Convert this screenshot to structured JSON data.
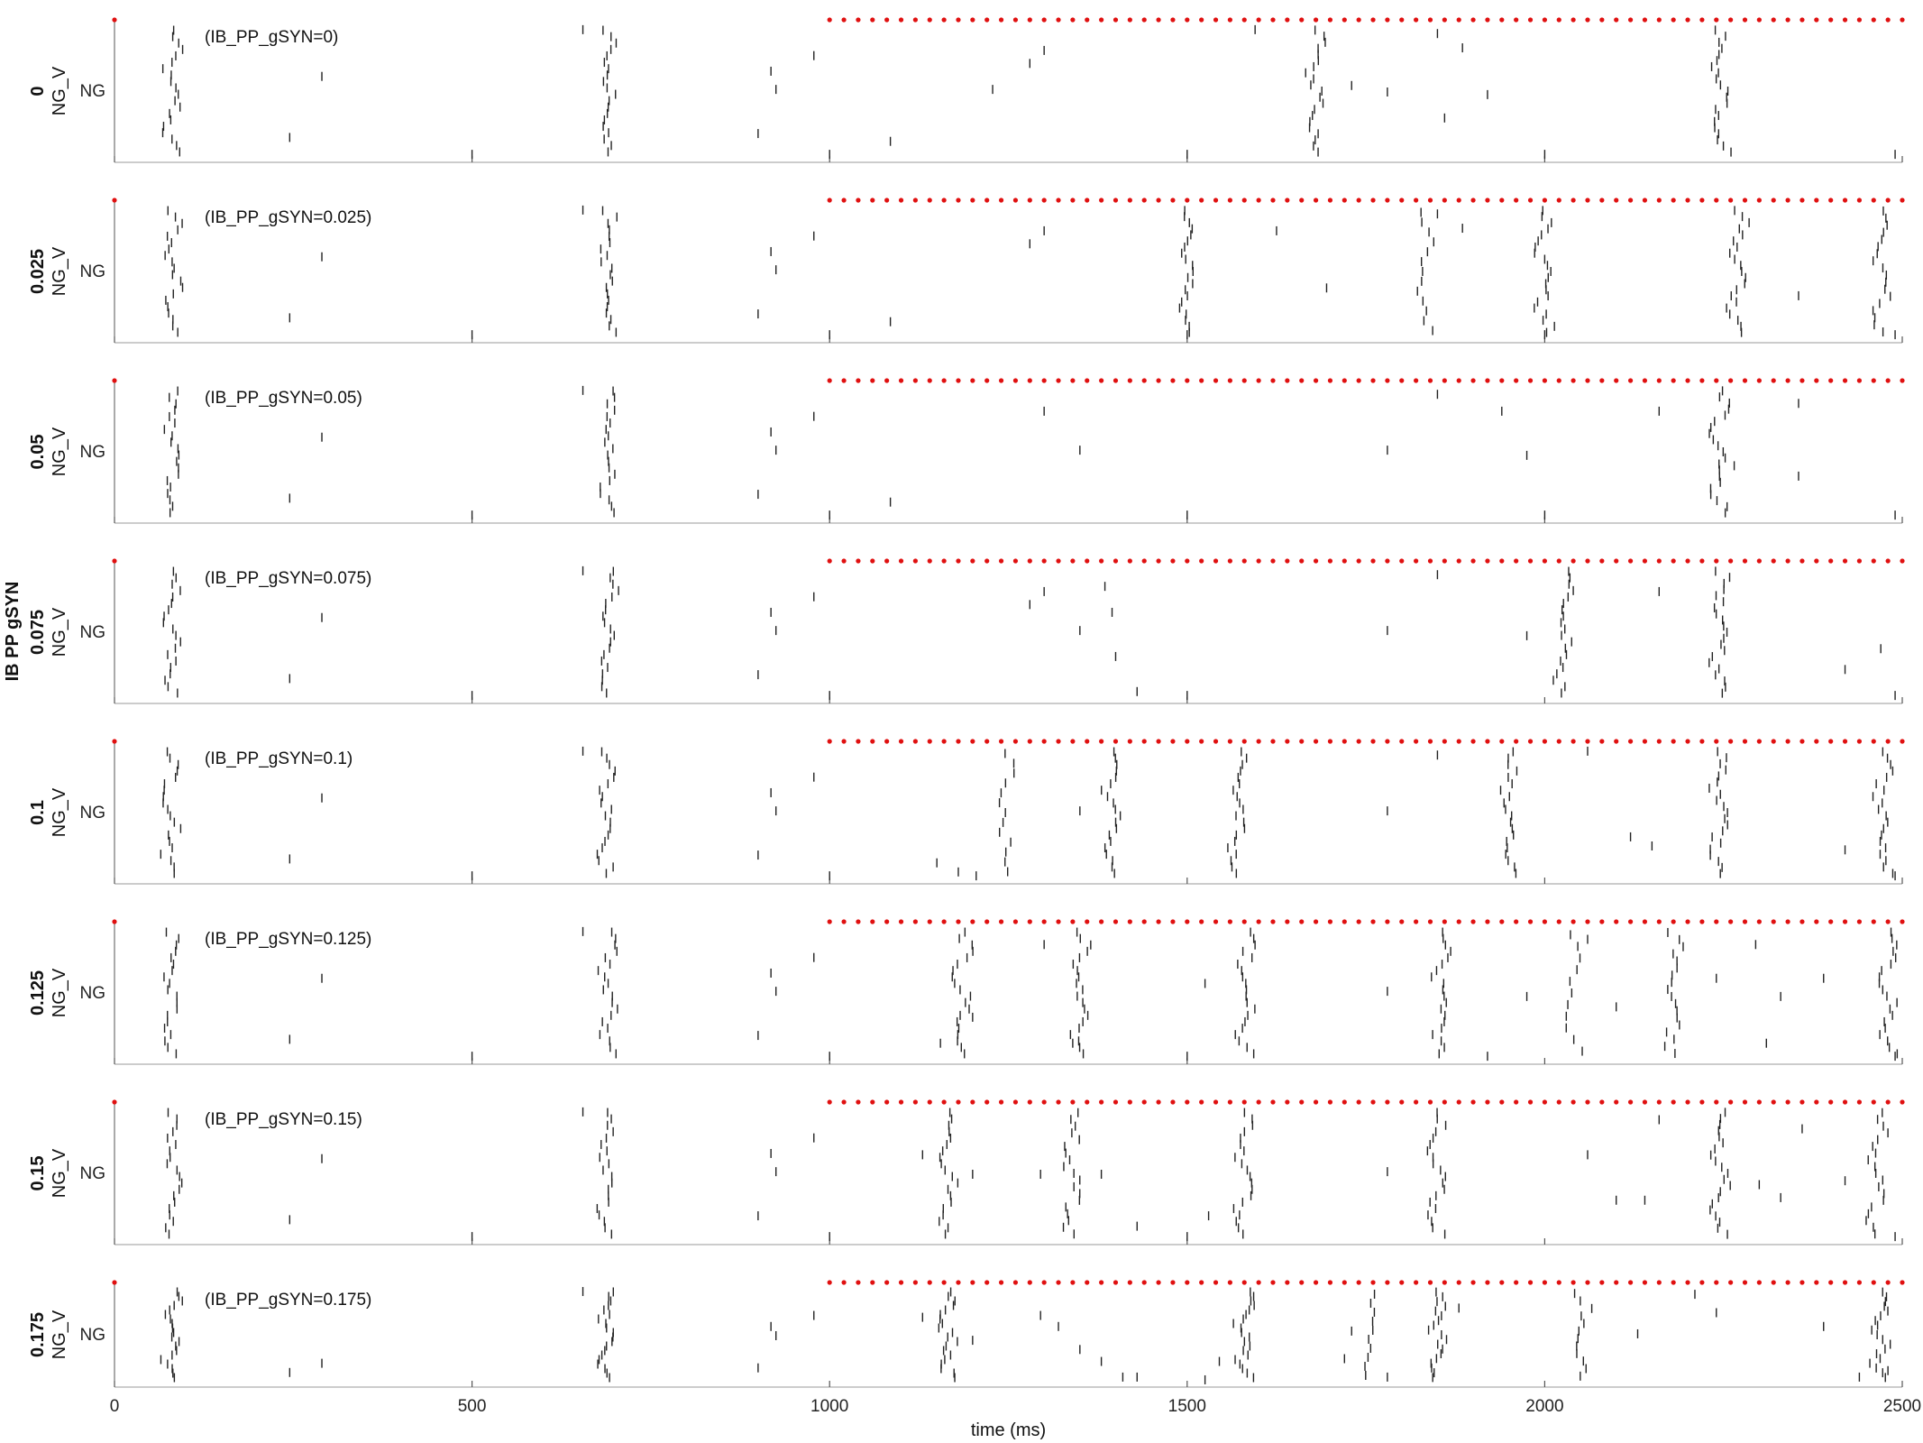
{
  "chart_data": {
    "type": "scatter",
    "layout": "stacked-raster-panels",
    "x_axis": {
      "label": "time (ms)",
      "ticks": [
        "0",
        "500",
        "1000",
        "1500",
        "2000",
        "2500"
      ],
      "range": [
        0,
        2500
      ]
    },
    "group_label": "IB PP gSYN",
    "row_tick_label": "NG",
    "panels": [
      {
        "value": "0",
        "ylabel": "NG_V",
        "annotation": "(IB_PP_gSYN=0)",
        "bursts": [
          [
            80,
            0.9
          ],
          [
            690,
            0.9
          ],
          [
            1680,
            0.95
          ],
          [
            2245,
            0.95
          ]
        ],
        "sparse": [
          [
            245,
            0.15
          ],
          [
            290,
            0.62
          ],
          [
            500,
            0.02
          ],
          [
            655,
            0.98
          ],
          [
            900,
            0.18
          ],
          [
            918,
            0.66
          ],
          [
            925,
            0.52
          ],
          [
            978,
            0.78
          ],
          [
            1000,
            0.02
          ],
          [
            1085,
            0.12
          ],
          [
            1228,
            0.52
          ],
          [
            1280,
            0.72
          ],
          [
            1300,
            0.82
          ],
          [
            1500,
            0.02
          ],
          [
            1595,
            0.98
          ],
          [
            1730,
            0.55
          ],
          [
            1780,
            0.5
          ],
          [
            1850,
            0.95
          ],
          [
            1860,
            0.3
          ],
          [
            1885,
            0.84
          ],
          [
            1920,
            0.48
          ],
          [
            2000,
            0.02
          ],
          [
            2490,
            0.02
          ]
        ]
      },
      {
        "value": "0.025",
        "ylabel": "NG_V",
        "annotation": "(IB_PP_gSYN=0.025)",
        "bursts": [
          [
            80,
            0.9
          ],
          [
            690,
            0.9
          ],
          [
            1500,
            0.95
          ],
          [
            1830,
            0.6
          ],
          [
            2000,
            0.95
          ],
          [
            2270,
            0.95
          ],
          [
            2470,
            0.8
          ]
        ],
        "sparse": [
          [
            245,
            0.15
          ],
          [
            290,
            0.62
          ],
          [
            500,
            0.02
          ],
          [
            655,
            0.98
          ],
          [
            900,
            0.18
          ],
          [
            918,
            0.66
          ],
          [
            925,
            0.52
          ],
          [
            978,
            0.78
          ],
          [
            1000,
            0.02
          ],
          [
            1085,
            0.12
          ],
          [
            1280,
            0.72
          ],
          [
            1300,
            0.82
          ],
          [
            1500,
            0.02
          ],
          [
            1625,
            0.82
          ],
          [
            1695,
            0.38
          ],
          [
            1850,
            0.95
          ],
          [
            1885,
            0.84
          ],
          [
            2000,
            0.02
          ],
          [
            2355,
            0.32
          ],
          [
            2490,
            0.02
          ]
        ]
      },
      {
        "value": "0.05",
        "ylabel": "NG_V",
        "annotation": "(IB_PP_gSYN=0.05)",
        "bursts": [
          [
            80,
            0.9
          ],
          [
            690,
            0.9
          ],
          [
            2245,
            0.95
          ]
        ],
        "sparse": [
          [
            245,
            0.15
          ],
          [
            290,
            0.62
          ],
          [
            500,
            0.02
          ],
          [
            655,
            0.98
          ],
          [
            900,
            0.18
          ],
          [
            918,
            0.66
          ],
          [
            925,
            0.52
          ],
          [
            978,
            0.78
          ],
          [
            1000,
            0.02
          ],
          [
            1085,
            0.12
          ],
          [
            1300,
            0.82
          ],
          [
            1350,
            0.52
          ],
          [
            1500,
            0.02
          ],
          [
            1780,
            0.52
          ],
          [
            1850,
            0.95
          ],
          [
            1940,
            0.82
          ],
          [
            1975,
            0.48
          ],
          [
            2000,
            0.02
          ],
          [
            2160,
            0.82
          ],
          [
            2265,
            0.4
          ],
          [
            2355,
            0.88
          ],
          [
            2355,
            0.32
          ],
          [
            2490,
            0.02
          ]
        ]
      },
      {
        "value": "0.075",
        "ylabel": "NG_V",
        "annotation": "(IB_PP_gSYN=0.075)",
        "bursts": [
          [
            80,
            0.9
          ],
          [
            690,
            0.9
          ],
          [
            2025,
            0.9
          ],
          [
            2245,
            0.95
          ]
        ],
        "sparse": [
          [
            245,
            0.15
          ],
          [
            290,
            0.62
          ],
          [
            500,
            0.02
          ],
          [
            655,
            0.98
          ],
          [
            900,
            0.18
          ],
          [
            918,
            0.66
          ],
          [
            925,
            0.52
          ],
          [
            978,
            0.78
          ],
          [
            1000,
            0.02
          ],
          [
            1280,
            0.72
          ],
          [
            1300,
            0.82
          ],
          [
            1350,
            0.52
          ],
          [
            1385,
            0.86
          ],
          [
            1395,
            0.66
          ],
          [
            1400,
            0.32
          ],
          [
            1430,
            0.05
          ],
          [
            1500,
            0.02
          ],
          [
            1780,
            0.52
          ],
          [
            1850,
            0.95
          ],
          [
            1975,
            0.48
          ],
          [
            2160,
            0.82
          ],
          [
            2420,
            0.22
          ],
          [
            2470,
            0.38
          ],
          [
            2490,
            0.02
          ]
        ]
      },
      {
        "value": "0.1",
        "ylabel": "NG_V",
        "annotation": "(IB_PP_gSYN=0.1)",
        "bursts": [
          [
            80,
            0.9
          ],
          [
            690,
            0.9
          ],
          [
            1245,
            0.6
          ],
          [
            1395,
            0.9
          ],
          [
            1570,
            0.9
          ],
          [
            1950,
            0.9
          ],
          [
            2245,
            0.95
          ],
          [
            2475,
            0.9
          ]
        ],
        "sparse": [
          [
            245,
            0.15
          ],
          [
            290,
            0.62
          ],
          [
            500,
            0.02
          ],
          [
            655,
            0.98
          ],
          [
            900,
            0.18
          ],
          [
            918,
            0.66
          ],
          [
            925,
            0.52
          ],
          [
            978,
            0.78
          ],
          [
            1000,
            0.02
          ],
          [
            1150,
            0.12
          ],
          [
            1180,
            0.05
          ],
          [
            1205,
            0.02
          ],
          [
            1350,
            0.52
          ],
          [
            1780,
            0.52
          ],
          [
            1850,
            0.95
          ],
          [
            2060,
            0.98
          ],
          [
            2120,
            0.32
          ],
          [
            2150,
            0.25
          ],
          [
            2420,
            0.22
          ],
          [
            2490,
            0.02
          ]
        ]
      },
      {
        "value": "0.125",
        "ylabel": "NG_V",
        "annotation": "(IB_PP_gSYN=0.125)",
        "bursts": [
          [
            80,
            0.9
          ],
          [
            690,
            0.9
          ],
          [
            1185,
            0.9
          ],
          [
            1350,
            0.9
          ],
          [
            1580,
            0.9
          ],
          [
            1855,
            0.9
          ],
          [
            2040,
            0.5
          ],
          [
            2180,
            0.8
          ],
          [
            2480,
            0.9
          ]
        ],
        "sparse": [
          [
            245,
            0.15
          ],
          [
            290,
            0.62
          ],
          [
            500,
            0.02
          ],
          [
            655,
            0.98
          ],
          [
            900,
            0.18
          ],
          [
            918,
            0.66
          ],
          [
            925,
            0.52
          ],
          [
            978,
            0.78
          ],
          [
            1000,
            0.02
          ],
          [
            1155,
            0.12
          ],
          [
            1200,
            0.32
          ],
          [
            1300,
            0.88
          ],
          [
            1340,
            0.12
          ],
          [
            1500,
            0.02
          ],
          [
            1525,
            0.58
          ],
          [
            1780,
            0.52
          ],
          [
            1920,
            0.02
          ],
          [
            1975,
            0.48
          ],
          [
            2060,
            0.92
          ],
          [
            2100,
            0.4
          ],
          [
            2240,
            0.62
          ],
          [
            2295,
            0.88
          ],
          [
            2310,
            0.12
          ],
          [
            2330,
            0.48
          ],
          [
            2390,
            0.62
          ],
          [
            2490,
            0.02
          ]
        ]
      },
      {
        "value": "0.15",
        "ylabel": "NG_V",
        "annotation": "(IB_PP_gSYN=0.15)",
        "bursts": [
          [
            80,
            0.9
          ],
          [
            690,
            0.9
          ],
          [
            1165,
            0.9
          ],
          [
            1340,
            0.85
          ],
          [
            1580,
            0.9
          ],
          [
            1850,
            0.9
          ],
          [
            2245,
            0.95
          ],
          [
            2465,
            0.85
          ]
        ],
        "sparse": [
          [
            245,
            0.15
          ],
          [
            290,
            0.62
          ],
          [
            500,
            0.02
          ],
          [
            655,
            0.98
          ],
          [
            900,
            0.18
          ],
          [
            918,
            0.66
          ],
          [
            925,
            0.52
          ],
          [
            978,
            0.78
          ],
          [
            1000,
            0.02
          ],
          [
            1130,
            0.65
          ],
          [
            1200,
            0.5
          ],
          [
            1295,
            0.5
          ],
          [
            1380,
            0.5
          ],
          [
            1430,
            0.1
          ],
          [
            1500,
            0.02
          ],
          [
            1530,
            0.18
          ],
          [
            1780,
            0.52
          ],
          [
            2060,
            0.65
          ],
          [
            2100,
            0.3
          ],
          [
            2140,
            0.3
          ],
          [
            2160,
            0.92
          ],
          [
            2300,
            0.42
          ],
          [
            2330,
            0.32
          ],
          [
            2360,
            0.85
          ],
          [
            2420,
            0.45
          ],
          [
            2490,
            0.02
          ]
        ]
      },
      {
        "value": "0.175",
        "ylabel": "NG_V",
        "annotation": "(IB_PP_gSYN=0.175)",
        "bursts": [
          [
            80,
            0.9
          ],
          [
            690,
            0.9
          ],
          [
            1165,
            0.9
          ],
          [
            1580,
            0.9
          ],
          [
            1755,
            0.45
          ],
          [
            1850,
            0.85
          ],
          [
            2050,
            0.55
          ],
          [
            2470,
            0.85
          ]
        ],
        "sparse": [
          [
            245,
            0.1
          ],
          [
            290,
            0.2
          ],
          [
            655,
            0.98
          ],
          [
            900,
            0.15
          ],
          [
            918,
            0.6
          ],
          [
            925,
            0.5
          ],
          [
            978,
            0.72
          ],
          [
            1130,
            0.7
          ],
          [
            1200,
            0.45
          ],
          [
            1295,
            0.72
          ],
          [
            1320,
            0.6
          ],
          [
            1350,
            0.35
          ],
          [
            1380,
            0.22
          ],
          [
            1410,
            0.05
          ],
          [
            1430,
            0.05
          ],
          [
            1525,
            0.02
          ],
          [
            1545,
            0.22
          ],
          [
            1720,
            0.25
          ],
          [
            1730,
            0.55
          ],
          [
            1780,
            0.05
          ],
          [
            1880,
            0.8
          ],
          [
            2130,
            0.52
          ],
          [
            2210,
            0.95
          ],
          [
            2240,
            0.75
          ],
          [
            2390,
            0.6
          ],
          [
            2440,
            0.05
          ],
          [
            2480,
            0.12
          ]
        ]
      }
    ]
  }
}
